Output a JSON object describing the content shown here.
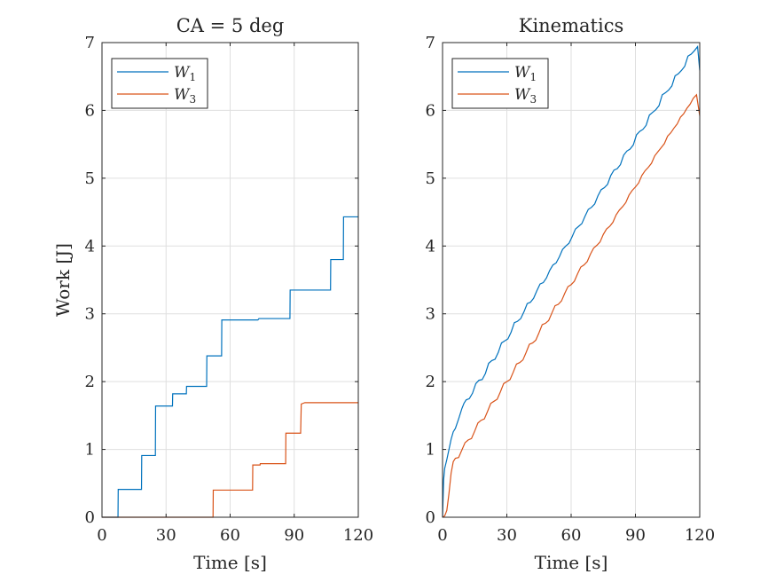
{
  "chart_data": [
    {
      "type": "line",
      "title": "CA = 5 deg",
      "xlabel": "Time [s]",
      "ylabel": "Work [J]",
      "xlim": [
        0,
        120
      ],
      "ylim": [
        0,
        7
      ],
      "xticks": [
        0,
        30,
        60,
        90,
        120
      ],
      "yticks": [
        0,
        1,
        2,
        3,
        4,
        5,
        6,
        7
      ],
      "grid": true,
      "legend_position": "top-left",
      "series": [
        {
          "name": "W1",
          "label_main": "W",
          "label_sub": "1",
          "color": "#0072BD",
          "x": [
            0,
            7.5,
            7.6,
            18.5,
            18.6,
            25,
            25.1,
            33,
            33.1,
            39.5,
            39.6,
            49,
            49.1,
            56,
            56.1,
            73,
            73.5,
            88,
            88.1,
            107,
            107.1,
            113,
            113.1,
            120
          ],
          "y": [
            0,
            0,
            0.41,
            0.41,
            0.91,
            0.91,
            1.64,
            1.64,
            1.82,
            1.82,
            1.93,
            1.93,
            2.38,
            2.38,
            2.91,
            2.91,
            2.93,
            2.93,
            3.35,
            3.35,
            3.8,
            3.8,
            4.43,
            4.43
          ]
        },
        {
          "name": "W3",
          "label_main": "W",
          "label_sub": "3",
          "color": "#D95319",
          "x": [
            0,
            52,
            52.1,
            70.5,
            70.6,
            74,
            74.1,
            86,
            86.1,
            93,
            93.3,
            95,
            120
          ],
          "y": [
            0,
            0,
            0.4,
            0.4,
            0.77,
            0.77,
            0.79,
            0.79,
            1.24,
            1.24,
            1.67,
            1.69,
            1.69
          ]
        }
      ]
    },
    {
      "type": "line",
      "title": "Kinematics",
      "xlabel": "Time [s]",
      "ylabel": "",
      "xlim": [
        0,
        120
      ],
      "ylim": [
        0,
        7
      ],
      "xticks": [
        0,
        30,
        60,
        90,
        120
      ],
      "yticks": [
        0,
        1,
        2,
        3,
        4,
        5,
        6,
        7
      ],
      "grid": true,
      "legend_position": "top-left",
      "series": [
        {
          "name": "W1",
          "label_main": "W",
          "label_sub": "1",
          "color": "#0072BD",
          "x": [
            0,
            0.5,
            1,
            2,
            3,
            4,
            5,
            6,
            7.5,
            9,
            10,
            11,
            12.5,
            14,
            15.5,
            17,
            18.5,
            20,
            21.5,
            23,
            24.5,
            26,
            27.5,
            29,
            30.5,
            32,
            33.5,
            35,
            36.5,
            38,
            39.5,
            41,
            42.5,
            44,
            45.5,
            47,
            48.5,
            50,
            51.5,
            53,
            54.5,
            56,
            57.5,
            59,
            60.5,
            62,
            63.5,
            65,
            66.5,
            68,
            69.5,
            71,
            72.5,
            74,
            75.5,
            77,
            78.5,
            80,
            81.5,
            83,
            84.5,
            86,
            87.5,
            89,
            90.5,
            92,
            93.5,
            95,
            96.5,
            98,
            99.5,
            101,
            102.5,
            104,
            105.5,
            107,
            108.5,
            110,
            111.5,
            113,
            114.5,
            116,
            117.5,
            119,
            120
          ],
          "y": [
            0,
            0.55,
            0.72,
            0.85,
            1.0,
            1.15,
            1.26,
            1.31,
            1.45,
            1.6,
            1.68,
            1.73,
            1.75,
            1.83,
            1.97,
            2.02,
            2.03,
            2.12,
            2.27,
            2.31,
            2.33,
            2.43,
            2.57,
            2.6,
            2.63,
            2.73,
            2.87,
            2.89,
            2.93,
            3.03,
            3.15,
            3.17,
            3.23,
            3.34,
            3.44,
            3.46,
            3.53,
            3.64,
            3.72,
            3.75,
            3.84,
            3.95,
            4.0,
            4.04,
            4.14,
            4.25,
            4.29,
            4.33,
            4.44,
            4.54,
            4.57,
            4.62,
            4.74,
            4.83,
            4.86,
            4.91,
            5.04,
            5.12,
            5.14,
            5.2,
            5.34,
            5.4,
            5.43,
            5.49,
            5.64,
            5.69,
            5.72,
            5.78,
            5.93,
            5.97,
            6.01,
            6.07,
            6.23,
            6.26,
            6.3,
            6.36,
            6.51,
            6.54,
            6.59,
            6.65,
            6.8,
            6.83,
            6.88,
            6.94,
            6.59
          ]
        },
        {
          "name": "W3",
          "label_main": "W",
          "label_sub": "3",
          "color": "#D95319",
          "x": [
            0,
            1,
            2,
            3,
            4,
            5,
            6,
            7.5,
            9,
            10.5,
            12,
            13.5,
            15,
            16.5,
            18,
            19.5,
            21,
            22.5,
            24,
            25.5,
            27,
            28.5,
            30,
            31.5,
            33,
            34.5,
            36,
            37.5,
            39,
            40.5,
            42,
            43.5,
            45,
            46.5,
            48,
            49.5,
            51,
            52.5,
            54,
            55.5,
            57,
            58.5,
            60,
            61.5,
            63,
            64.5,
            66,
            67.5,
            69,
            70.5,
            72,
            73.5,
            75,
            76.5,
            78,
            79.5,
            81,
            82.5,
            84,
            85.5,
            87,
            88.5,
            90,
            91.5,
            93,
            94.5,
            96,
            97.5,
            99,
            100.5,
            102,
            103.5,
            105,
            106.5,
            108,
            109.5,
            111,
            112.5,
            114,
            115.5,
            117,
            118.5,
            120
          ],
          "y": [
            0,
            0.02,
            0.1,
            0.35,
            0.65,
            0.82,
            0.87,
            0.88,
            0.99,
            1.1,
            1.14,
            1.16,
            1.27,
            1.39,
            1.43,
            1.45,
            1.56,
            1.68,
            1.71,
            1.74,
            1.85,
            1.97,
            2.0,
            2.03,
            2.14,
            2.26,
            2.28,
            2.32,
            2.43,
            2.55,
            2.57,
            2.61,
            2.72,
            2.84,
            2.86,
            2.9,
            3.01,
            3.12,
            3.14,
            3.19,
            3.3,
            3.4,
            3.43,
            3.48,
            3.59,
            3.69,
            3.72,
            3.77,
            3.88,
            3.97,
            4.01,
            4.06,
            4.17,
            4.25,
            4.29,
            4.35,
            4.46,
            4.53,
            4.58,
            4.64,
            4.75,
            4.82,
            4.87,
            4.93,
            5.04,
            5.11,
            5.16,
            5.22,
            5.33,
            5.39,
            5.45,
            5.51,
            5.62,
            5.67,
            5.74,
            5.8,
            5.9,
            5.95,
            6.03,
            6.09,
            6.18,
            6.23,
            5.92
          ]
        }
      ]
    }
  ]
}
